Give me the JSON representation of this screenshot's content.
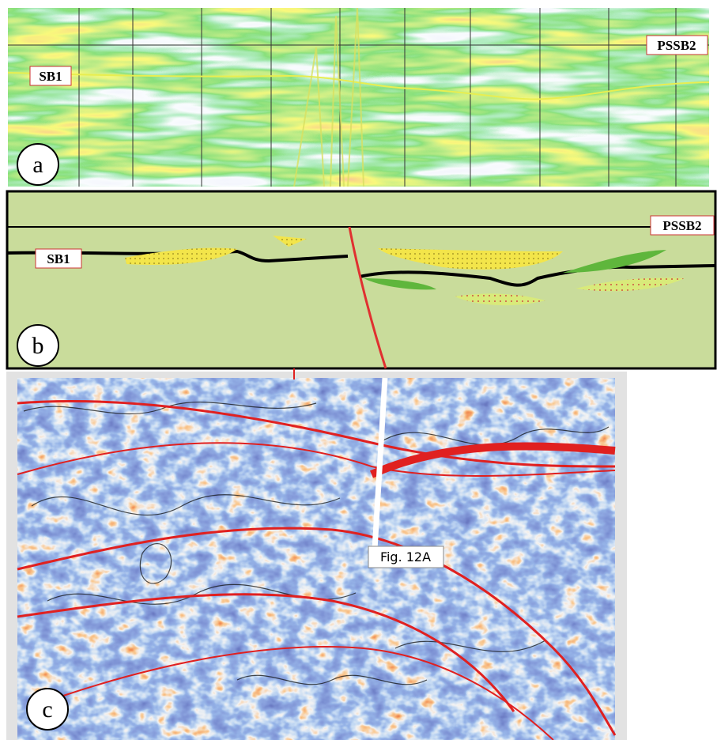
{
  "panel_a": {
    "letter": "a",
    "horizon_left": "SB1",
    "horizon_right": "PSSB2"
  },
  "panel_b": {
    "letter": "b",
    "horizon_left": "SB1",
    "horizon_right": "PSSB2"
  },
  "panel_c": {
    "letter": "c",
    "section_label": "Fig. 12A"
  }
}
